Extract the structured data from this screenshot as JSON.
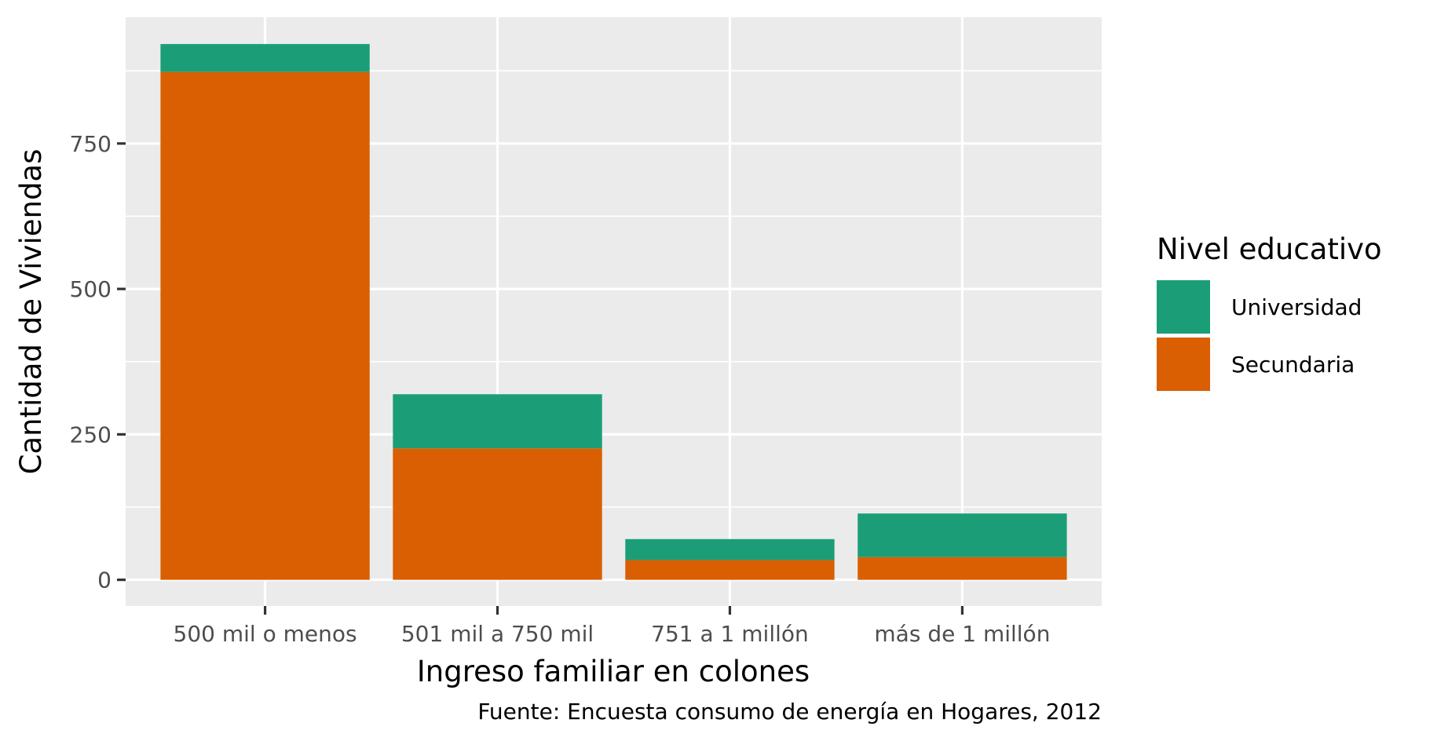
{
  "chart_data": {
    "type": "bar",
    "stacked": true,
    "categories": [
      "500 mil o menos",
      "501 mil a 750 mil",
      "751 a 1 millón",
      "más de 1 millón"
    ],
    "series": [
      {
        "name": "Secundaria",
        "values": [
          873,
          226,
          34,
          39
        ],
        "color": "#D95F02"
      },
      {
        "name": "Universidad",
        "values": [
          48,
          93,
          36,
          75
        ],
        "color": "#1B9E77"
      }
    ],
    "xlabel": "Ingreso familiar en colones",
    "ylabel": "Cantidad de Viviendas",
    "ylim": [
      -45,
      967
    ],
    "yticks": [
      0,
      250,
      500,
      750
    ],
    "ytick_labels": [
      "0",
      "250",
      "500",
      "750"
    ],
    "caption": "Fuente: Encuesta consumo de energía en Hogares, 2012",
    "legend": {
      "title": "Nivel educativo",
      "placement": "right",
      "items": [
        {
          "label": "Universidad",
          "color": "#1B9E77"
        },
        {
          "label": "Secundaria",
          "color": "#D95F02"
        }
      ]
    },
    "grid": true,
    "panel_background": "#EBEBEB"
  }
}
